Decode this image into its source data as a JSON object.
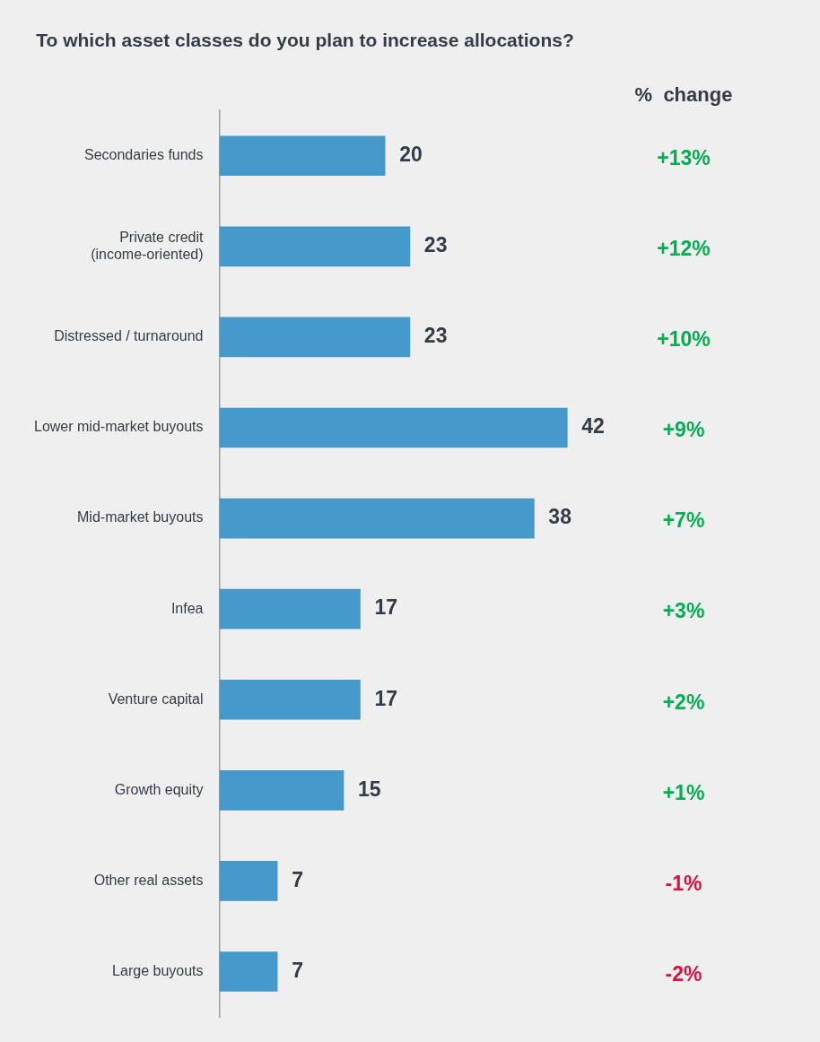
{
  "chart_data": {
    "type": "bar",
    "orientation": "horizontal",
    "title": "To which asset classes do you plan to increase allocations?",
    "categories": [
      "Secondaries funds",
      "Private credit (income-oriented)",
      "Distressed / turnaround",
      "Lower mid-market buyouts",
      "Mid-market buyouts",
      "Infea",
      "Venture capital",
      "Growth equity",
      "Other real assets",
      "Large buyouts"
    ],
    "values": [
      20,
      23,
      23,
      42,
      38,
      17,
      17,
      15,
      7,
      7
    ],
    "color": "#4599cb",
    "data_labels": true,
    "tick_labels": "y",
    "grid": false,
    "legend": false,
    "annotations": [
      "%  change",
      "+13%",
      "+12%",
      "+10%",
      "+9%",
      "+7%",
      "+3%",
      "+2%",
      "+1%",
      "-1%",
      "-2%"
    ]
  }
}
